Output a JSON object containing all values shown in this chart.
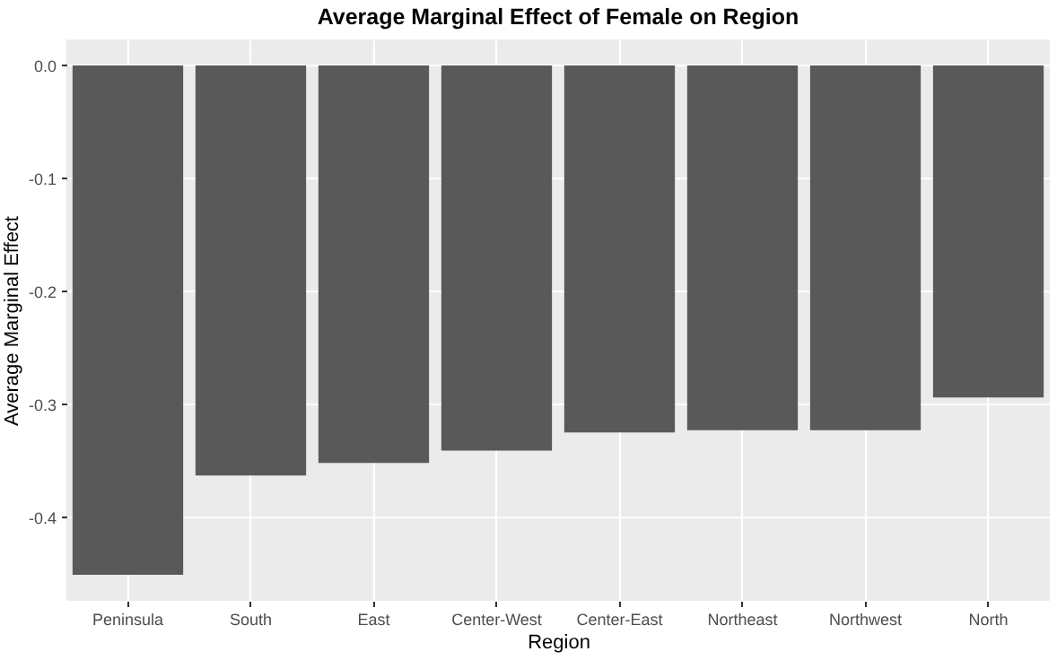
{
  "chart_data": {
    "type": "bar",
    "title": "Average Marginal Effect of Female on Region",
    "xlabel": "Region",
    "ylabel": "Average Marginal Effect",
    "categories": [
      "Peninsula",
      "South",
      "East",
      "Center-West",
      "Center-East",
      "Northeast",
      "Northwest",
      "North"
    ],
    "values": [
      -0.451,
      -0.363,
      -0.352,
      -0.341,
      -0.325,
      -0.323,
      -0.323,
      -0.294
    ],
    "color": "#595959",
    "ylim": [
      -0.474,
      0.023
    ],
    "yticks": [
      {
        "value": -0.4,
        "label": "-0.4"
      },
      {
        "value": -0.3,
        "label": "-0.3"
      },
      {
        "value": -0.2,
        "label": "-0.2"
      },
      {
        "value": -0.1,
        "label": "-0.1"
      },
      {
        "value": 0,
        "label": "0.0"
      }
    ],
    "grid": true
  }
}
